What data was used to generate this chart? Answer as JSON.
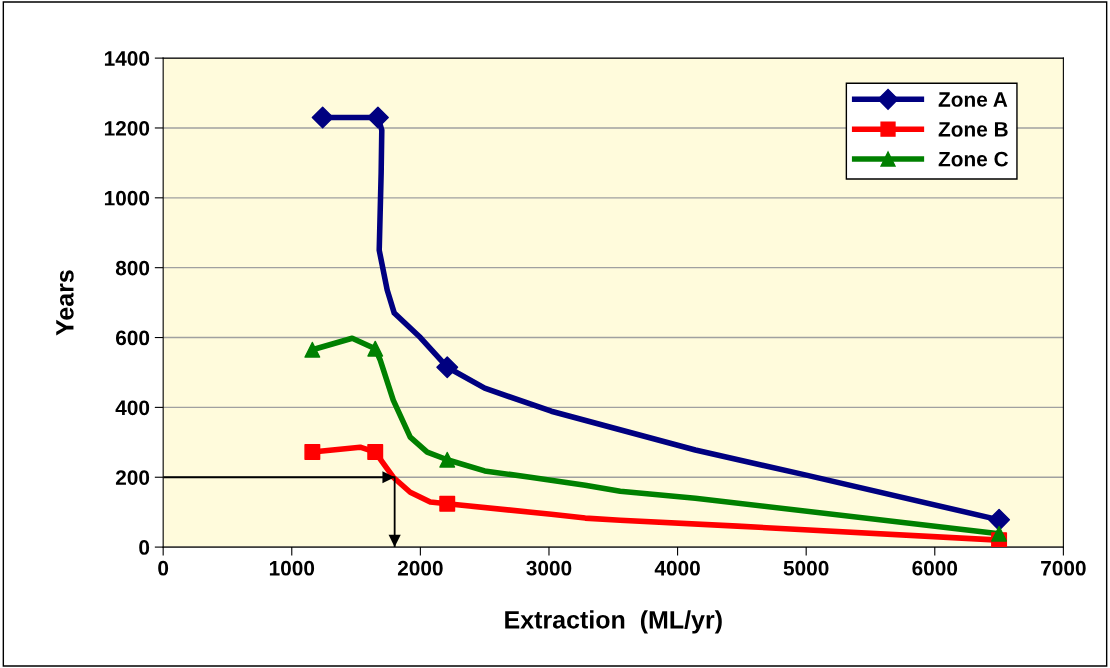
{
  "chart_data": {
    "type": "line",
    "xlabel": "Extraction  (ML/yr)",
    "ylabel": "Years",
    "xlim": [
      0,
      7000
    ],
    "xticks": [
      0,
      1000,
      2000,
      3000,
      4000,
      5000,
      6000,
      7000
    ],
    "ylim": [
      0,
      1400
    ],
    "yticks": [
      0,
      200,
      400,
      600,
      800,
      1000,
      1200,
      1400
    ],
    "grid": "y",
    "legend": "top right",
    "series": [
      {
        "color": "#000080",
        "x": [
          1240,
          1670,
          1700,
          1695,
          1680,
          1742,
          1797,
          2000,
          2209,
          2500,
          3018,
          4138,
          5001,
          6500
        ],
        "values": [
          1230,
          1230,
          1194,
          1071,
          850,
          736,
          670,
          600,
          515,
          455,
          389,
          278,
          206,
          78
        ]
      },
      {
        "color": "#ff0000",
        "x": [
          1160,
          1532,
          1649,
          1789,
          1921,
          2077,
          2209,
          3018,
          3282,
          3554,
          4465,
          6500
        ],
        "values": [
          272,
          286,
          272,
          200,
          157,
          129,
          124,
          94,
          83,
          77,
          60,
          20
        ]
      },
      {
        "color": "#008000",
        "x": [
          1160,
          1470,
          1649,
          1688,
          1789,
          1921,
          2053,
          2209,
          2500,
          2855,
          3282,
          3554,
          4138,
          6500
        ],
        "values": [
          565,
          598,
          568,
          535,
          421,
          315,
          272,
          250,
          218,
          200,
          177,
          160,
          140,
          38
        ]
      },
      {
        "name": "Zone A",
        "type": "scatter",
        "color": "#000080",
        "marker": "diamond",
        "x": [
          1240,
          1670,
          2209,
          6500
        ],
        "values": [
          1230,
          1230,
          515,
          78
        ]
      },
      {
        "name": "Zone B",
        "type": "scatter",
        "color": "#ff0000",
        "marker": "square",
        "x": [
          1160,
          1649,
          2209,
          6500
        ],
        "values": [
          272,
          272,
          124,
          20
        ]
      },
      {
        "name": "Zone C",
        "type": "scatter",
        "color": "#008000",
        "marker": "triangle",
        "x": [
          1160,
          1649,
          2209,
          6500
        ],
        "values": [
          565,
          568,
          250,
          38
        ]
      },
      {
        "color": "#000000",
        "x": [
          0,
          1800,
          1800
        ],
        "values": [
          200,
          200,
          0
        ]
      }
    ]
  }
}
